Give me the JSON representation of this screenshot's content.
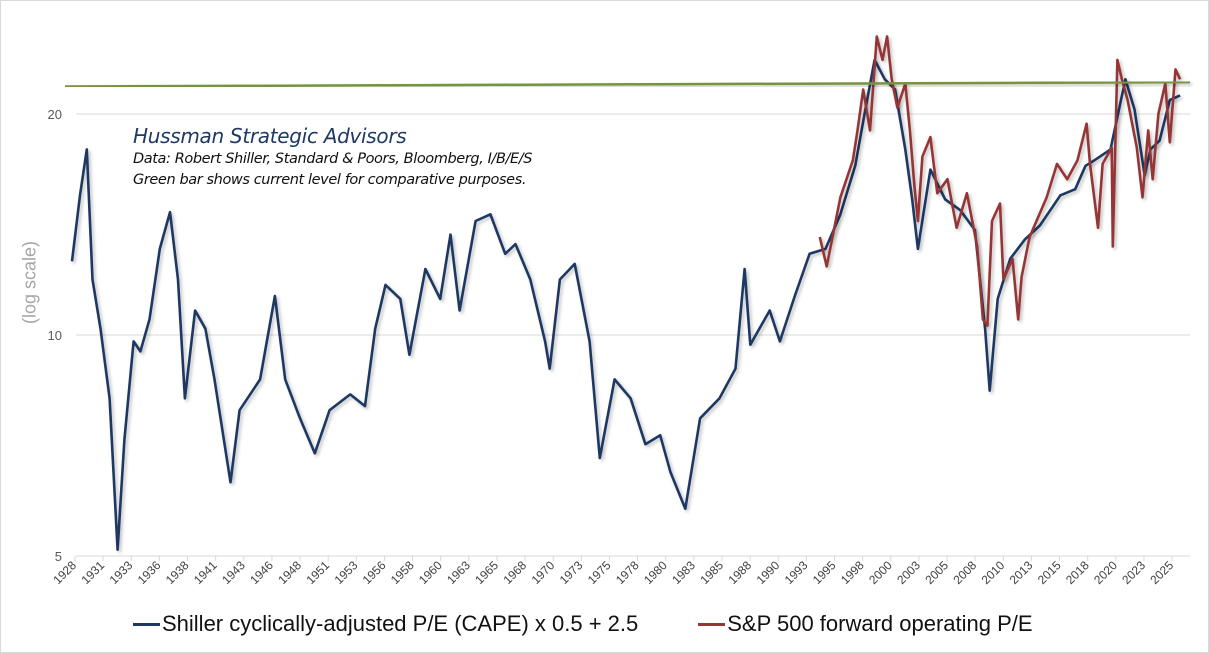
{
  "chart_data": {
    "type": "line",
    "title": "",
    "ylabel": "(log scale)",
    "xlabel": "",
    "yscale": "log",
    "ylim": [
      5,
      27
    ],
    "yticks": [
      "5",
      "10",
      "20"
    ],
    "ytick_values": [
      5,
      10,
      20
    ],
    "grid": "horizontal",
    "legend_position": "bottom",
    "xtick_labels": [
      "1928",
      "1931",
      "1933",
      "1936",
      "1938",
      "1941",
      "1943",
      "1946",
      "1948",
      "1951",
      "1953",
      "1956",
      "1958",
      "1960",
      "1963",
      "1965",
      "1968",
      "1970",
      "1973",
      "1975",
      "1978",
      "1980",
      "1983",
      "1985",
      "1988",
      "1990",
      "1993",
      "1995",
      "1998",
      "2000",
      "2003",
      "2005",
      "2008",
      "2010",
      "2013",
      "2015",
      "2018",
      "2020",
      "2023",
      "2025"
    ],
    "annotation": {
      "title": "Hussman Strategic Advisors",
      "line1": "Data: Robert Shiller, Standard & Poors, Bloomberg, I/B/E/S",
      "line2": "Green bar shows current level for comparative purposes."
    },
    "reference_line": {
      "color": "#77933C",
      "start_value": 21.8,
      "end_value": 22.1
    },
    "series": [
      {
        "name": "Shiller cyclically-adjusted P/E (CAPE) x 0.5 + 2.5",
        "color": "#1F3864",
        "points": [
          [
            1928.0,
            12.6
          ],
          [
            1928.7,
            15.5
          ],
          [
            1929.3,
            17.9
          ],
          [
            1929.8,
            11.9
          ],
          [
            1930.5,
            10.2
          ],
          [
            1931.3,
            8.2
          ],
          [
            1932.0,
            5.1
          ],
          [
            1932.6,
            7.2
          ],
          [
            1933.4,
            9.8
          ],
          [
            1934.0,
            9.5
          ],
          [
            1934.8,
            10.5
          ],
          [
            1935.7,
            13.1
          ],
          [
            1936.6,
            14.7
          ],
          [
            1937.3,
            11.9
          ],
          [
            1937.9,
            8.2
          ],
          [
            1938.8,
            10.8
          ],
          [
            1939.7,
            10.2
          ],
          [
            1940.5,
            8.7
          ],
          [
            1941.9,
            6.3
          ],
          [
            1942.7,
            7.9
          ],
          [
            1944.5,
            8.7
          ],
          [
            1945.8,
            11.3
          ],
          [
            1946.7,
            8.7
          ],
          [
            1948.0,
            7.7
          ],
          [
            1949.3,
            6.9
          ],
          [
            1950.6,
            7.9
          ],
          [
            1952.4,
            8.3
          ],
          [
            1953.7,
            8.0
          ],
          [
            1954.6,
            10.2
          ],
          [
            1955.5,
            11.7
          ],
          [
            1956.8,
            11.2
          ],
          [
            1957.6,
            9.4
          ],
          [
            1959.0,
            12.3
          ],
          [
            1960.3,
            11.2
          ],
          [
            1961.2,
            13.7
          ],
          [
            1962.0,
            10.8
          ],
          [
            1963.4,
            14.3
          ],
          [
            1964.7,
            14.6
          ],
          [
            1966.0,
            12.9
          ],
          [
            1966.9,
            13.3
          ],
          [
            1968.2,
            11.9
          ],
          [
            1969.5,
            9.8
          ],
          [
            1969.9,
            9.0
          ],
          [
            1970.8,
            11.9
          ],
          [
            1972.1,
            12.5
          ],
          [
            1973.4,
            9.8
          ],
          [
            1974.3,
            6.8
          ],
          [
            1975.6,
            8.7
          ],
          [
            1977.0,
            8.2
          ],
          [
            1978.3,
            7.1
          ],
          [
            1979.6,
            7.3
          ],
          [
            1980.5,
            6.5
          ],
          [
            1981.8,
            5.8
          ],
          [
            1983.1,
            7.7
          ],
          [
            1984.8,
            8.2
          ],
          [
            1986.2,
            9.0
          ],
          [
            1987.0,
            12.3
          ],
          [
            1987.5,
            9.7
          ],
          [
            1989.2,
            10.8
          ],
          [
            1990.1,
            9.8
          ],
          [
            1991.4,
            11.3
          ],
          [
            1992.7,
            12.9
          ],
          [
            1994.1,
            13.1
          ],
          [
            1995.4,
            14.6
          ],
          [
            1996.7,
            17.0
          ],
          [
            1997.6,
            20.3
          ],
          [
            1998.4,
            23.7
          ],
          [
            1999.3,
            22.3
          ],
          [
            2000.2,
            21.6
          ],
          [
            2001.1,
            17.9
          ],
          [
            2001.7,
            15.3
          ],
          [
            2002.2,
            13.1
          ],
          [
            2003.3,
            16.8
          ],
          [
            2004.6,
            15.3
          ],
          [
            2005.9,
            14.8
          ],
          [
            2007.2,
            13.9
          ],
          [
            2008.1,
            10.2
          ],
          [
            2008.5,
            8.4
          ],
          [
            2009.2,
            11.2
          ],
          [
            2010.3,
            12.7
          ],
          [
            2011.6,
            13.5
          ],
          [
            2012.9,
            14.1
          ],
          [
            2014.7,
            15.5
          ],
          [
            2016.0,
            15.8
          ],
          [
            2016.9,
            17.0
          ],
          [
            2017.7,
            17.3
          ],
          [
            2019.1,
            17.9
          ],
          [
            2020.4,
            22.3
          ],
          [
            2021.2,
            20.3
          ],
          [
            2022.1,
            16.5
          ],
          [
            2022.6,
            17.9
          ],
          [
            2023.4,
            18.4
          ],
          [
            2024.3,
            20.9
          ],
          [
            2025.2,
            21.2
          ]
        ]
      },
      {
        "name": "S&P 500 forward operating P/E",
        "color": "#963634",
        "points": [
          [
            1993.6,
            13.6
          ],
          [
            1994.2,
            12.4
          ],
          [
            1995.4,
            15.4
          ],
          [
            1996.5,
            17.3
          ],
          [
            1996.9,
            19.0
          ],
          [
            1997.4,
            21.6
          ],
          [
            1998.0,
            19.0
          ],
          [
            1998.6,
            25.5
          ],
          [
            1999.1,
            23.7
          ],
          [
            1999.5,
            25.5
          ],
          [
            1999.9,
            22.3
          ],
          [
            2000.4,
            20.4
          ],
          [
            2001.1,
            22.0
          ],
          [
            2001.5,
            19.0
          ],
          [
            2001.9,
            15.9
          ],
          [
            2002.2,
            14.3
          ],
          [
            2002.6,
            17.5
          ],
          [
            2003.3,
            18.6
          ],
          [
            2003.9,
            15.6
          ],
          [
            2004.8,
            16.3
          ],
          [
            2005.6,
            14.0
          ],
          [
            2006.5,
            15.6
          ],
          [
            2007.4,
            13.2
          ],
          [
            2007.9,
            10.5
          ],
          [
            2008.3,
            10.3
          ],
          [
            2008.7,
            14.3
          ],
          [
            2009.4,
            15.1
          ],
          [
            2009.7,
            11.9
          ],
          [
            2010.5,
            12.7
          ],
          [
            2011.0,
            10.5
          ],
          [
            2011.3,
            12.0
          ],
          [
            2012.0,
            13.6
          ],
          [
            2013.5,
            15.4
          ],
          [
            2014.4,
            17.1
          ],
          [
            2015.3,
            16.3
          ],
          [
            2016.2,
            17.3
          ],
          [
            2017.0,
            19.4
          ],
          [
            2017.3,
            17.1
          ],
          [
            2018.0,
            14.0
          ],
          [
            2018.4,
            17.1
          ],
          [
            2019.2,
            18.0
          ],
          [
            2019.3,
            13.2
          ],
          [
            2019.7,
            23.7
          ],
          [
            2020.1,
            22.3
          ],
          [
            2020.6,
            20.9
          ],
          [
            2021.4,
            18.0
          ],
          [
            2021.9,
            15.4
          ],
          [
            2022.4,
            19.0
          ],
          [
            2022.8,
            16.3
          ],
          [
            2023.3,
            20.0
          ],
          [
            2023.9,
            22.0
          ],
          [
            2024.3,
            18.3
          ],
          [
            2024.8,
            23.0
          ],
          [
            2025.2,
            22.3
          ]
        ]
      }
    ]
  }
}
